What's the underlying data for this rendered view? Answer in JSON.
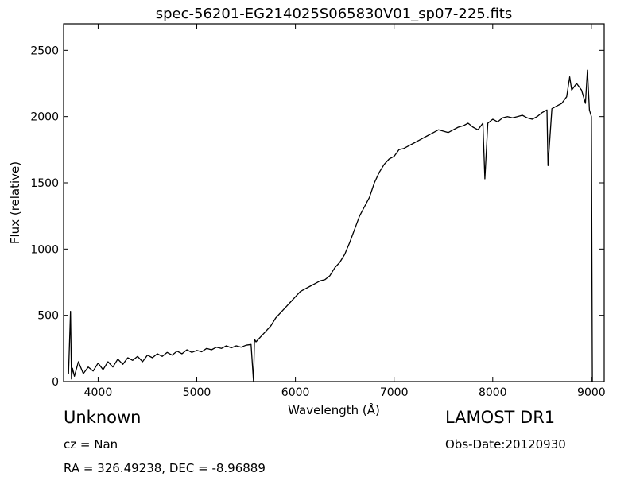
{
  "chart_data": {
    "type": "line",
    "title": "spec-56201-EG214025S065830V01_sp07-225.fits",
    "xlabel": "Wavelength (Å)",
    "ylabel": "Flux (relative)",
    "xlim": [
      3650,
      9130
    ],
    "ylim": [
      0,
      2700
    ],
    "xticks": [
      4000,
      5000,
      6000,
      7000,
      8000,
      9000
    ],
    "yticks": [
      0,
      500,
      1000,
      1500,
      2000,
      2500
    ],
    "grid": false,
    "line_color": "#000000",
    "series": [
      {
        "x": [
          3700,
          3720,
          3730,
          3740,
          3760,
          3800,
          3850,
          3900,
          3950,
          4000,
          4050,
          4100,
          4150,
          4200,
          4250,
          4300,
          4350,
          4400,
          4450,
          4500,
          4550,
          4600,
          4650,
          4700,
          4750,
          4800,
          4850,
          4900,
          4950,
          5000,
          5050,
          5100,
          5150,
          5200,
          5250,
          5300,
          5350,
          5400,
          5450,
          5500,
          5550,
          5575,
          5585,
          5600,
          5650,
          5700,
          5750,
          5800,
          5850,
          5900,
          5950,
          6000,
          6050,
          6100,
          6150,
          6200,
          6250,
          6300,
          6350,
          6400,
          6450,
          6500,
          6550,
          6600,
          6650,
          6700,
          6750,
          6800,
          6850,
          6900,
          6950,
          7000,
          7050,
          7100,
          7150,
          7200,
          7250,
          7300,
          7350,
          7400,
          7450,
          7500,
          7550,
          7600,
          7650,
          7700,
          7750,
          7800,
          7850,
          7900,
          7920,
          7950,
          8000,
          8050,
          8100,
          8150,
          8200,
          8250,
          8300,
          8350,
          8400,
          8450,
          8500,
          8550,
          8560,
          8600,
          8650,
          8700,
          8750,
          8780,
          8800,
          8850,
          8900,
          8940,
          8960,
          8980,
          9000,
          9010
        ],
        "y": [
          60,
          530,
          20,
          100,
          40,
          150,
          60,
          110,
          80,
          140,
          90,
          150,
          110,
          170,
          130,
          180,
          160,
          190,
          150,
          200,
          180,
          210,
          190,
          220,
          200,
          230,
          210,
          240,
          220,
          235,
          225,
          250,
          240,
          260,
          250,
          270,
          255,
          270,
          260,
          275,
          280,
          0,
          320,
          300,
          340,
          380,
          420,
          480,
          520,
          560,
          600,
          640,
          680,
          700,
          720,
          740,
          760,
          770,
          800,
          860,
          900,
          960,
          1050,
          1150,
          1250,
          1320,
          1390,
          1500,
          1580,
          1640,
          1680,
          1700,
          1750,
          1760,
          1780,
          1800,
          1820,
          1840,
          1860,
          1880,
          1900,
          1890,
          1880,
          1900,
          1920,
          1930,
          1950,
          1920,
          1900,
          1950,
          1530,
          1950,
          1980,
          1960,
          1990,
          2000,
          1990,
          2000,
          2010,
          1990,
          1980,
          2000,
          2030,
          2050,
          1630,
          2060,
          2080,
          2100,
          2150,
          2300,
          2200,
          2250,
          2200,
          2100,
          2350,
          2050,
          2000,
          0
        ]
      }
    ]
  },
  "footer": {
    "object_class": "Unknown",
    "survey": "LAMOST DR1",
    "redshift": "cz = Nan",
    "obs_date": "Obs-Date:20120930",
    "coordinates": "RA = 326.49238, DEC = -8.96889"
  }
}
